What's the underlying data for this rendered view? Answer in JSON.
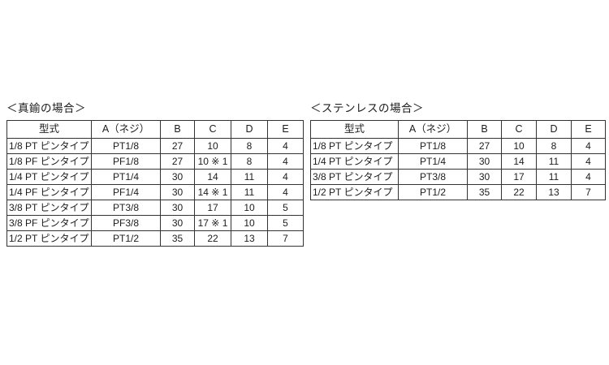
{
  "colors": {
    "background": "#ffffff",
    "border": "#333333",
    "text": "#1c1c1c"
  },
  "brass": {
    "title": "＜真鍮の場合＞",
    "headers": [
      "型式",
      "A（ネジ）",
      "B",
      "C",
      "D",
      "E"
    ],
    "rows": [
      [
        "1/8 PT ピンタイプ",
        "PT1/8",
        "27",
        "10",
        "8",
        "4"
      ],
      [
        "1/8 PF ピンタイプ",
        "PF1/8",
        "27",
        "10 ※ 1",
        "8",
        "4"
      ],
      [
        "1/4 PT ピンタイプ",
        "PT1/4",
        "30",
        "14",
        "11",
        "4"
      ],
      [
        "1/4 PF ピンタイプ",
        "PF1/4",
        "30",
        "14 ※ 1",
        "11",
        "4"
      ],
      [
        "3/8 PT ピンタイプ",
        "PT3/8",
        "30",
        "17",
        "10",
        "5"
      ],
      [
        "3/8 PF ピンタイプ",
        "PF3/8",
        "30",
        "17 ※ 1",
        "10",
        "5"
      ],
      [
        "1/2 PT ピンタイプ",
        "PT1/2",
        "35",
        "22",
        "13",
        "7"
      ]
    ]
  },
  "stainless": {
    "title": "＜ステンレスの場合＞",
    "headers": [
      "型式",
      "A（ネジ）",
      "B",
      "C",
      "D",
      "E"
    ],
    "rows": [
      [
        "1/8 PT ピンタイプ",
        "PT1/8",
        "27",
        "10",
        "8",
        "4"
      ],
      [
        "1/4 PT ピンタイプ",
        "PT1/4",
        "30",
        "14",
        "11",
        "4"
      ],
      [
        "3/8 PT ピンタイプ",
        "PT3/8",
        "30",
        "17",
        "11",
        "4"
      ],
      [
        "1/2 PT ピンタイプ",
        "PT1/2",
        "35",
        "22",
        "13",
        "7"
      ]
    ]
  }
}
